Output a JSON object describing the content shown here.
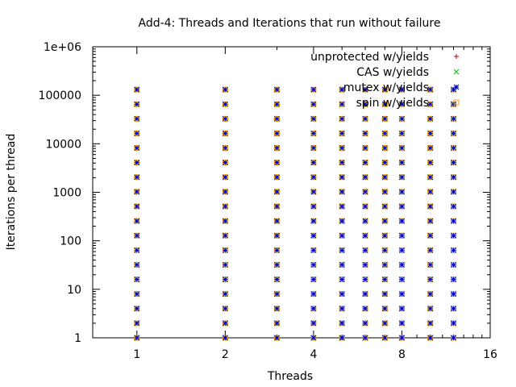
{
  "chart_data": {
    "type": "scatter",
    "title": "Add-4: Threads and Iterations that run without failure",
    "xlabel": "Threads",
    "ylabel": "Iterations per thread",
    "x_scale": "log2",
    "y_scale": "log10",
    "xlim": [
      0.707,
      16
    ],
    "ylim": [
      1,
      1000000
    ],
    "x_ticks": [
      {
        "value": 1,
        "label": "1"
      },
      {
        "value": 2,
        "label": "2"
      },
      {
        "value": 4,
        "label": "4"
      },
      {
        "value": 8,
        "label": "8"
      },
      {
        "value": 16,
        "label": "16"
      }
    ],
    "y_ticks": [
      {
        "value": 1,
        "label": "1"
      },
      {
        "value": 10,
        "label": "10"
      },
      {
        "value": 100,
        "label": "100"
      },
      {
        "value": 1000,
        "label": "1000"
      },
      {
        "value": 10000,
        "label": "10000"
      },
      {
        "value": 100000,
        "label": "100000"
      },
      {
        "value": 1000000,
        "label": "1e+06"
      }
    ],
    "grid": false,
    "legend_position": "top-right",
    "threads": [
      1,
      2,
      3,
      4,
      5,
      6,
      7,
      8,
      10,
      12
    ],
    "iterations": [
      1,
      2,
      4,
      8,
      16,
      32,
      64,
      128,
      256,
      512,
      1024,
      2048,
      4096,
      8192,
      16384,
      32768,
      65536,
      131072
    ],
    "series": [
      {
        "name": "unprotected w/yields",
        "marker": "plus",
        "color": "#c00000",
        "threads": [],
        "iterations": []
      },
      {
        "name": "CAS w/yields",
        "marker": "cross",
        "color": "#00c000",
        "threads": [
          1,
          2,
          3,
          4,
          5,
          6,
          7,
          8,
          10,
          12
        ],
        "iterations": [
          1,
          2,
          4,
          8,
          16,
          32,
          64,
          128,
          256,
          512,
          1024,
          2048,
          4096,
          8192,
          16384,
          32768,
          65536,
          131072
        ]
      },
      {
        "name": "mutex w/yields",
        "marker": "star",
        "color": "#0000c0",
        "threads": [
          1,
          2,
          3,
          4,
          5,
          6,
          7,
          8,
          10,
          12
        ],
        "iterations": [
          1,
          2,
          4,
          8,
          16,
          32,
          64,
          128,
          256,
          512,
          1024,
          2048,
          4096,
          8192,
          16384,
          32768,
          65536,
          131072
        ]
      },
      {
        "name": "spin w/yields",
        "marker": "square",
        "color": "#ffa000",
        "threads": [
          1,
          2,
          3,
          4,
          5,
          6,
          7,
          8,
          10,
          12
        ],
        "iterations": [
          1,
          2,
          4,
          8,
          16,
          32,
          64,
          128,
          256,
          512,
          1024,
          2048,
          4096,
          8192,
          16384,
          32768,
          65536,
          131072
        ]
      }
    ]
  }
}
